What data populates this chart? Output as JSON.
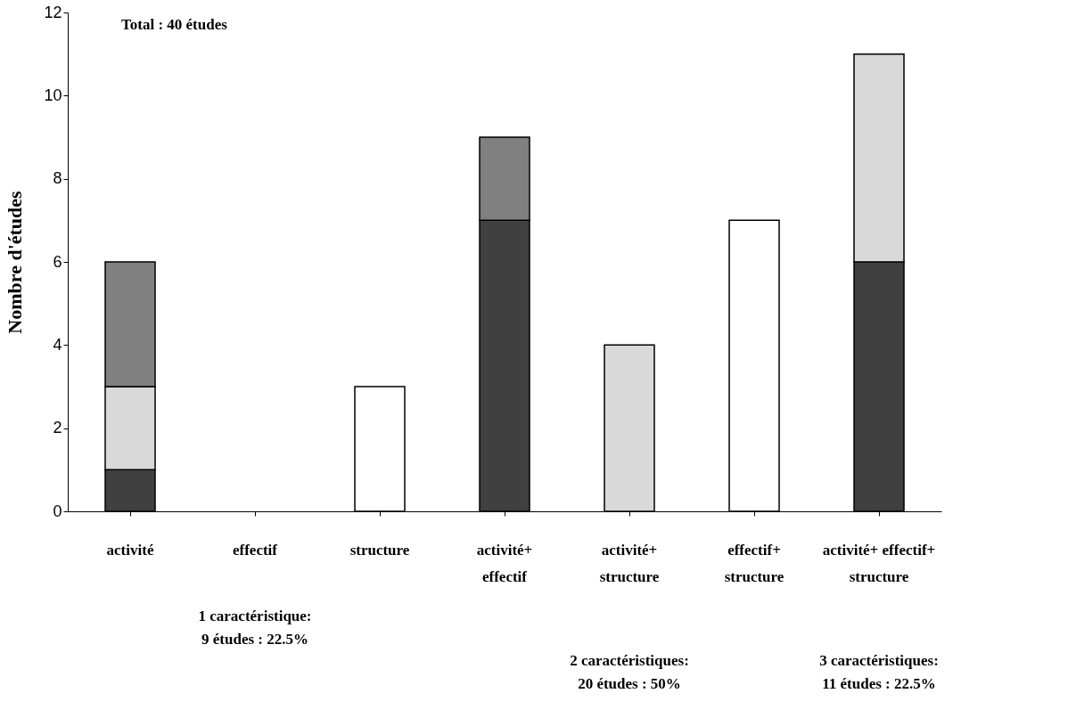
{
  "chart_data": {
    "type": "bar",
    "stacked": true,
    "ylabel": "Nombre d'études",
    "categories": [
      "activité",
      "effectif",
      "structure",
      "activité+ effectif",
      "activité+ structure",
      "effectif+ structure",
      "activité+ effectif+ structure"
    ],
    "series": [
      {
        "color": "#404040",
        "values": [
          1,
          null,
          null,
          7,
          null,
          null,
          6
        ]
      },
      {
        "color": "#d9d9d9",
        "values": [
          2,
          null,
          null,
          null,
          4,
          null,
          5
        ]
      },
      {
        "color": "#808080",
        "values": [
          3,
          null,
          null,
          2,
          null,
          null,
          null
        ]
      },
      {
        "color": "#ffffff",
        "values": [
          null,
          null,
          3,
          null,
          null,
          7,
          null
        ]
      }
    ],
    "ylim": [
      0,
      12
    ],
    "yticks": [
      0,
      2,
      4,
      6,
      8,
      10,
      12
    ],
    "grid": false,
    "legend": false,
    "annotations": [
      "Total : 40 études",
      "1 caractéristique:\n9 études : 22.5%",
      "2 caractéristiques:\n20 études : 50%",
      "3 caractéristiques:\n11 études : 22.5%"
    ]
  }
}
